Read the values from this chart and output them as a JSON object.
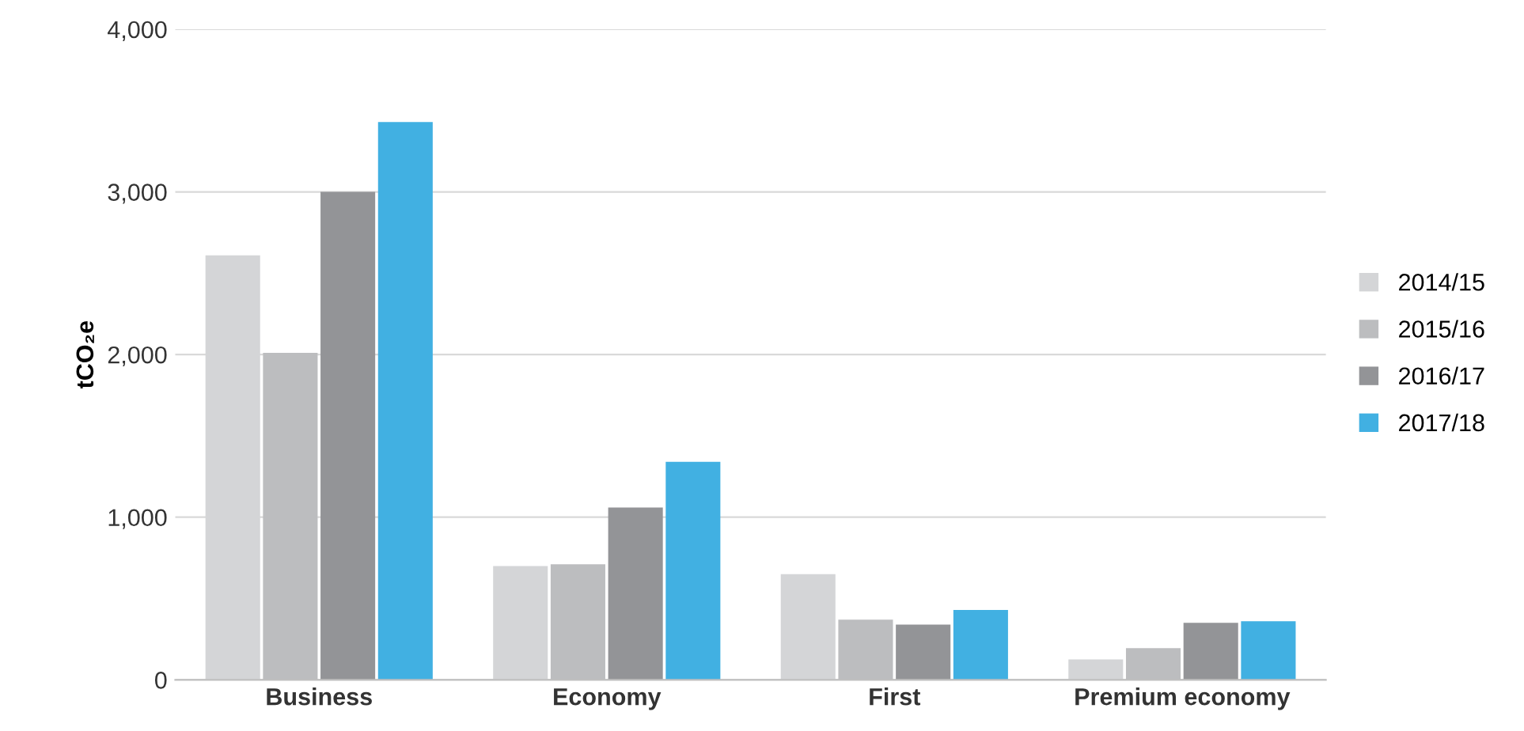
{
  "chart_data": {
    "type": "bar",
    "ylabel": "tCO₂e",
    "categories": [
      "Business",
      "Economy",
      "First",
      "Premium economy"
    ],
    "series": [
      {
        "name": "2014/15",
        "color": "#d4d5d7",
        "values": [
          2610,
          700,
          650,
          125
        ]
      },
      {
        "name": "2015/16",
        "color": "#bcbdbf",
        "values": [
          2010,
          710,
          370,
          195
        ]
      },
      {
        "name": "2016/17",
        "color": "#939497",
        "values": [
          3000,
          1060,
          340,
          350
        ]
      },
      {
        "name": "2017/18",
        "color": "#41b0e2",
        "values": [
          3430,
          1340,
          430,
          360
        ]
      }
    ],
    "ylim": [
      0,
      4000
    ],
    "yticks": [
      {
        "value": 0,
        "label": "0"
      },
      {
        "value": 1000,
        "label": "1,000"
      },
      {
        "value": 2000,
        "label": "2,000"
      },
      {
        "value": 3000,
        "label": "3,000"
      },
      {
        "value": 4000,
        "label": "4,000"
      }
    ],
    "grid": "y",
    "legend": "right"
  }
}
